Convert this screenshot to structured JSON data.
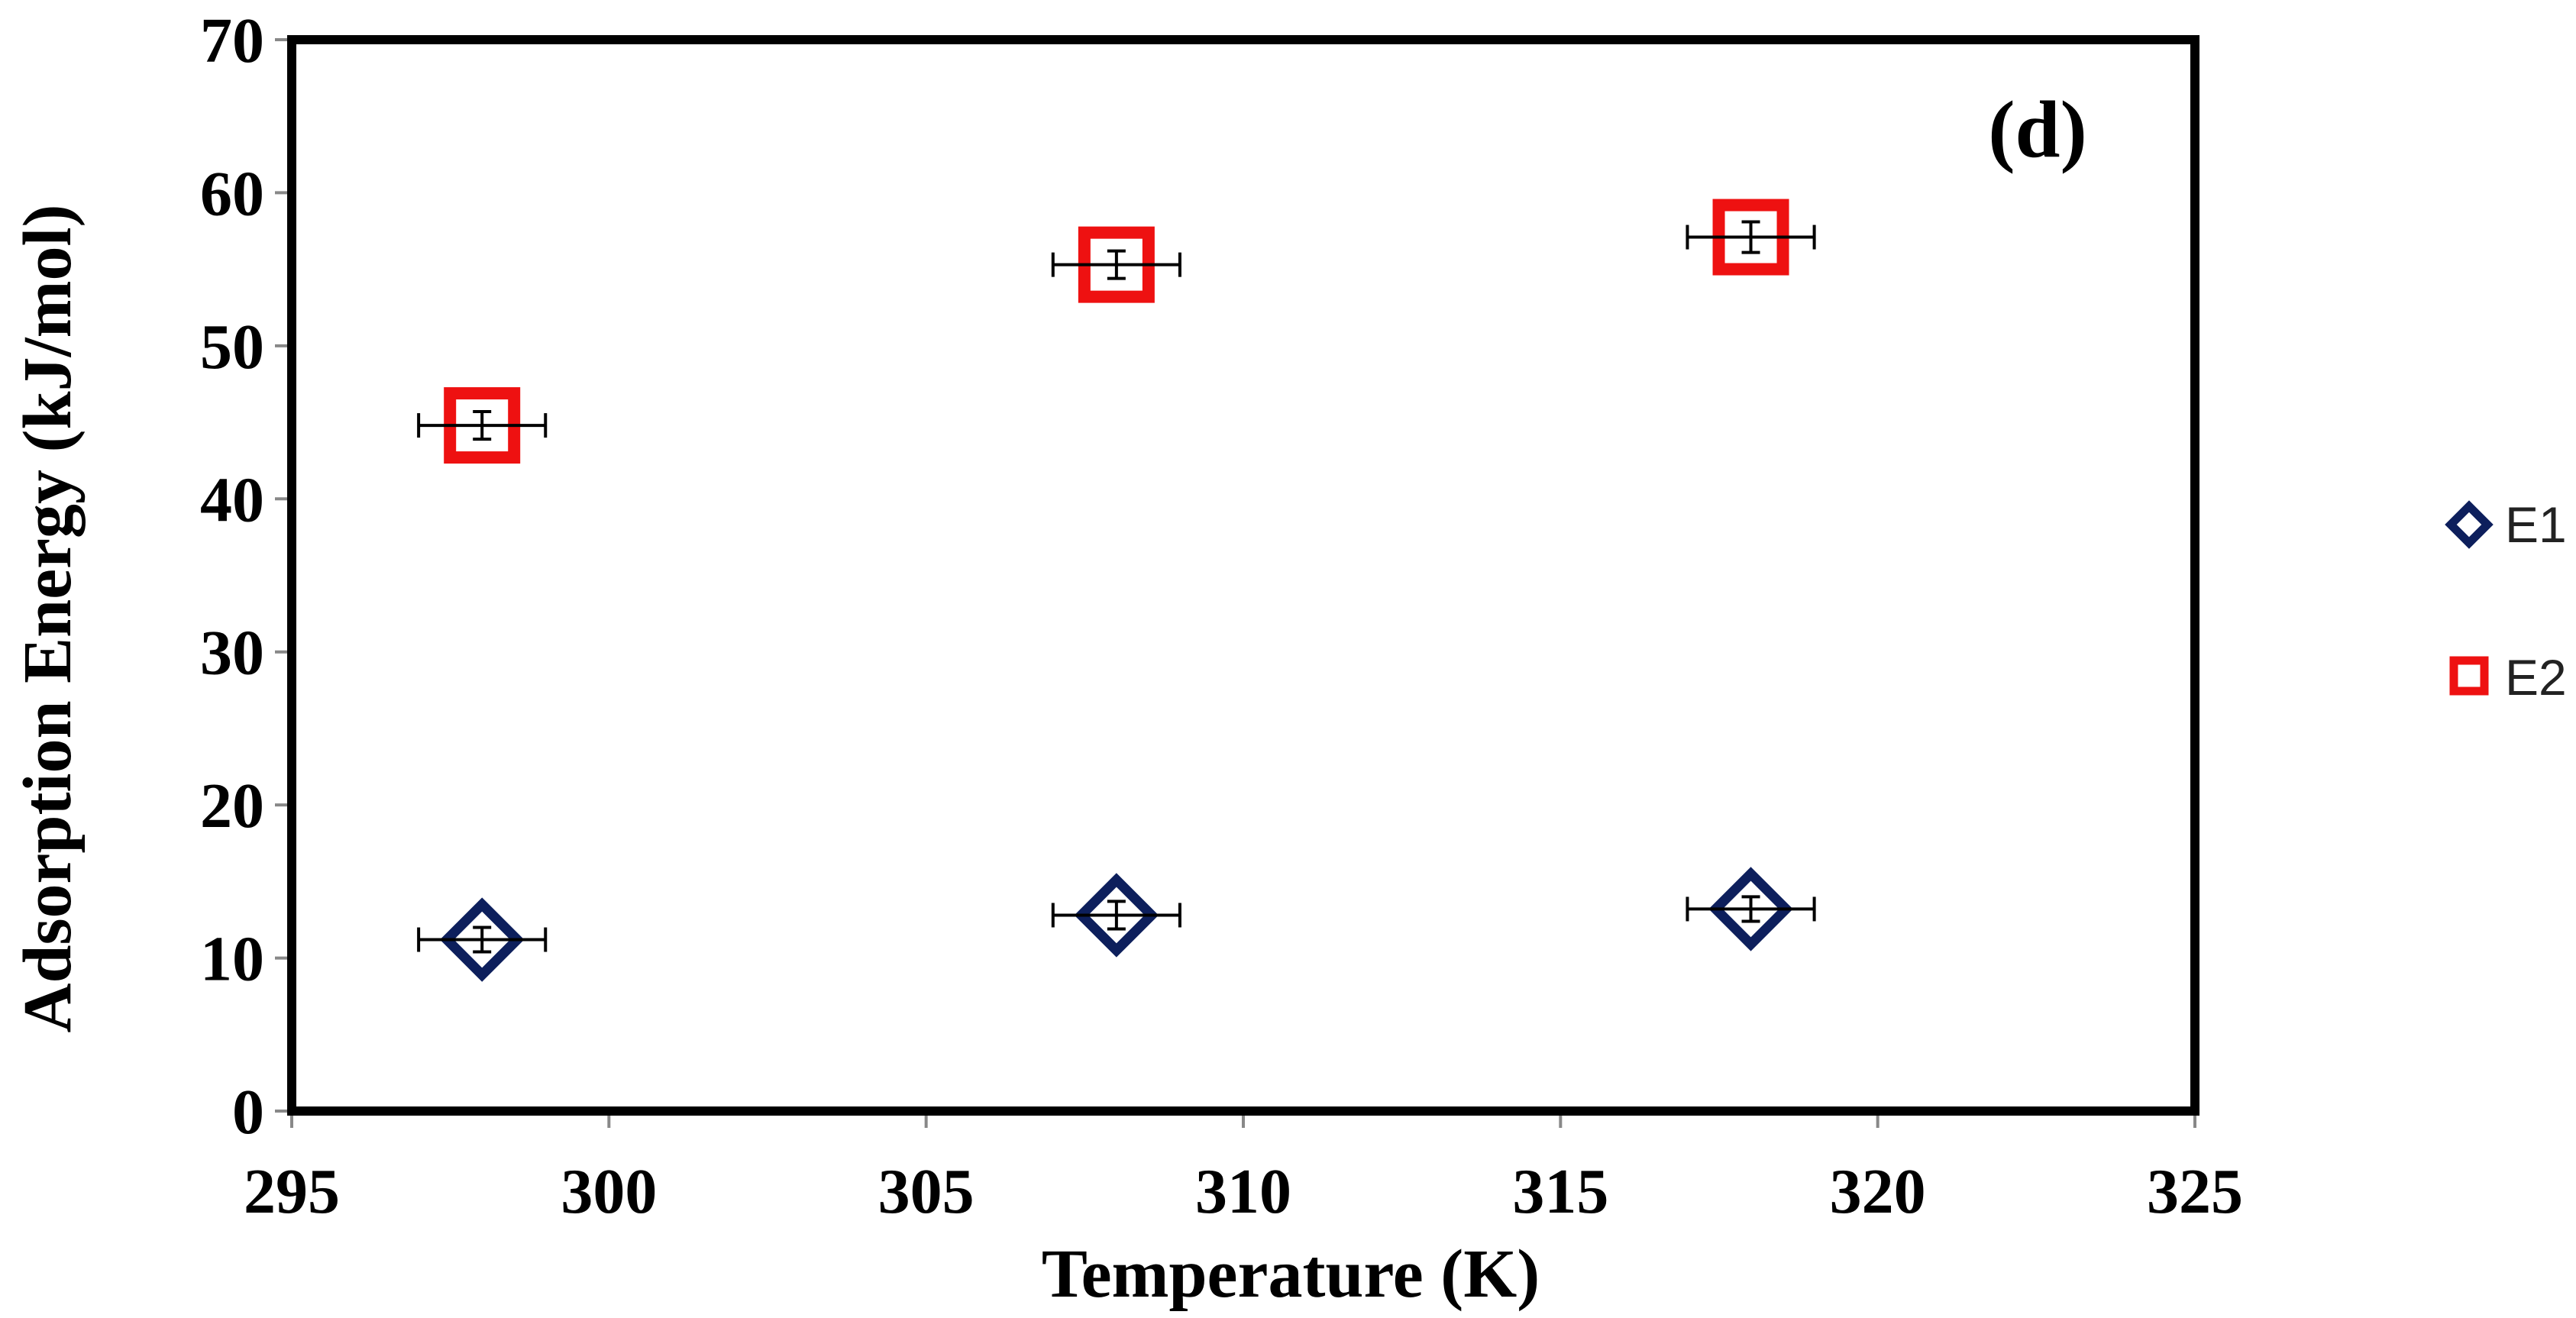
{
  "chart_data": {
    "type": "scatter",
    "panel_label": "(d)",
    "xlabel": "Temperature (K)",
    "ylabel": "Adsorption Energy (kJ/mol)",
    "xlim": [
      295,
      325
    ],
    "ylim": [
      0,
      70
    ],
    "x_ticks": [
      295,
      300,
      305,
      310,
      315,
      320,
      325
    ],
    "y_ticks": [
      0,
      10,
      20,
      30,
      40,
      50,
      60,
      70
    ],
    "grid": false,
    "legend_position": "right",
    "series": [
      {
        "name": "E1",
        "marker": "diamond",
        "color": "#0d1f5c",
        "x": [
          298,
          308,
          318
        ],
        "y": [
          11.2,
          12.8,
          13.2
        ],
        "x_error": [
          1,
          1,
          1
        ],
        "y_error": [
          0.8,
          0.9,
          0.8
        ]
      },
      {
        "name": "E2",
        "marker": "square",
        "color": "#ee1111",
        "x": [
          298,
          308,
          318
        ],
        "y": [
          44.8,
          55.3,
          57.1
        ],
        "x_error": [
          1,
          1,
          1
        ],
        "y_error": [
          0.9,
          0.9,
          1.0
        ]
      }
    ]
  }
}
